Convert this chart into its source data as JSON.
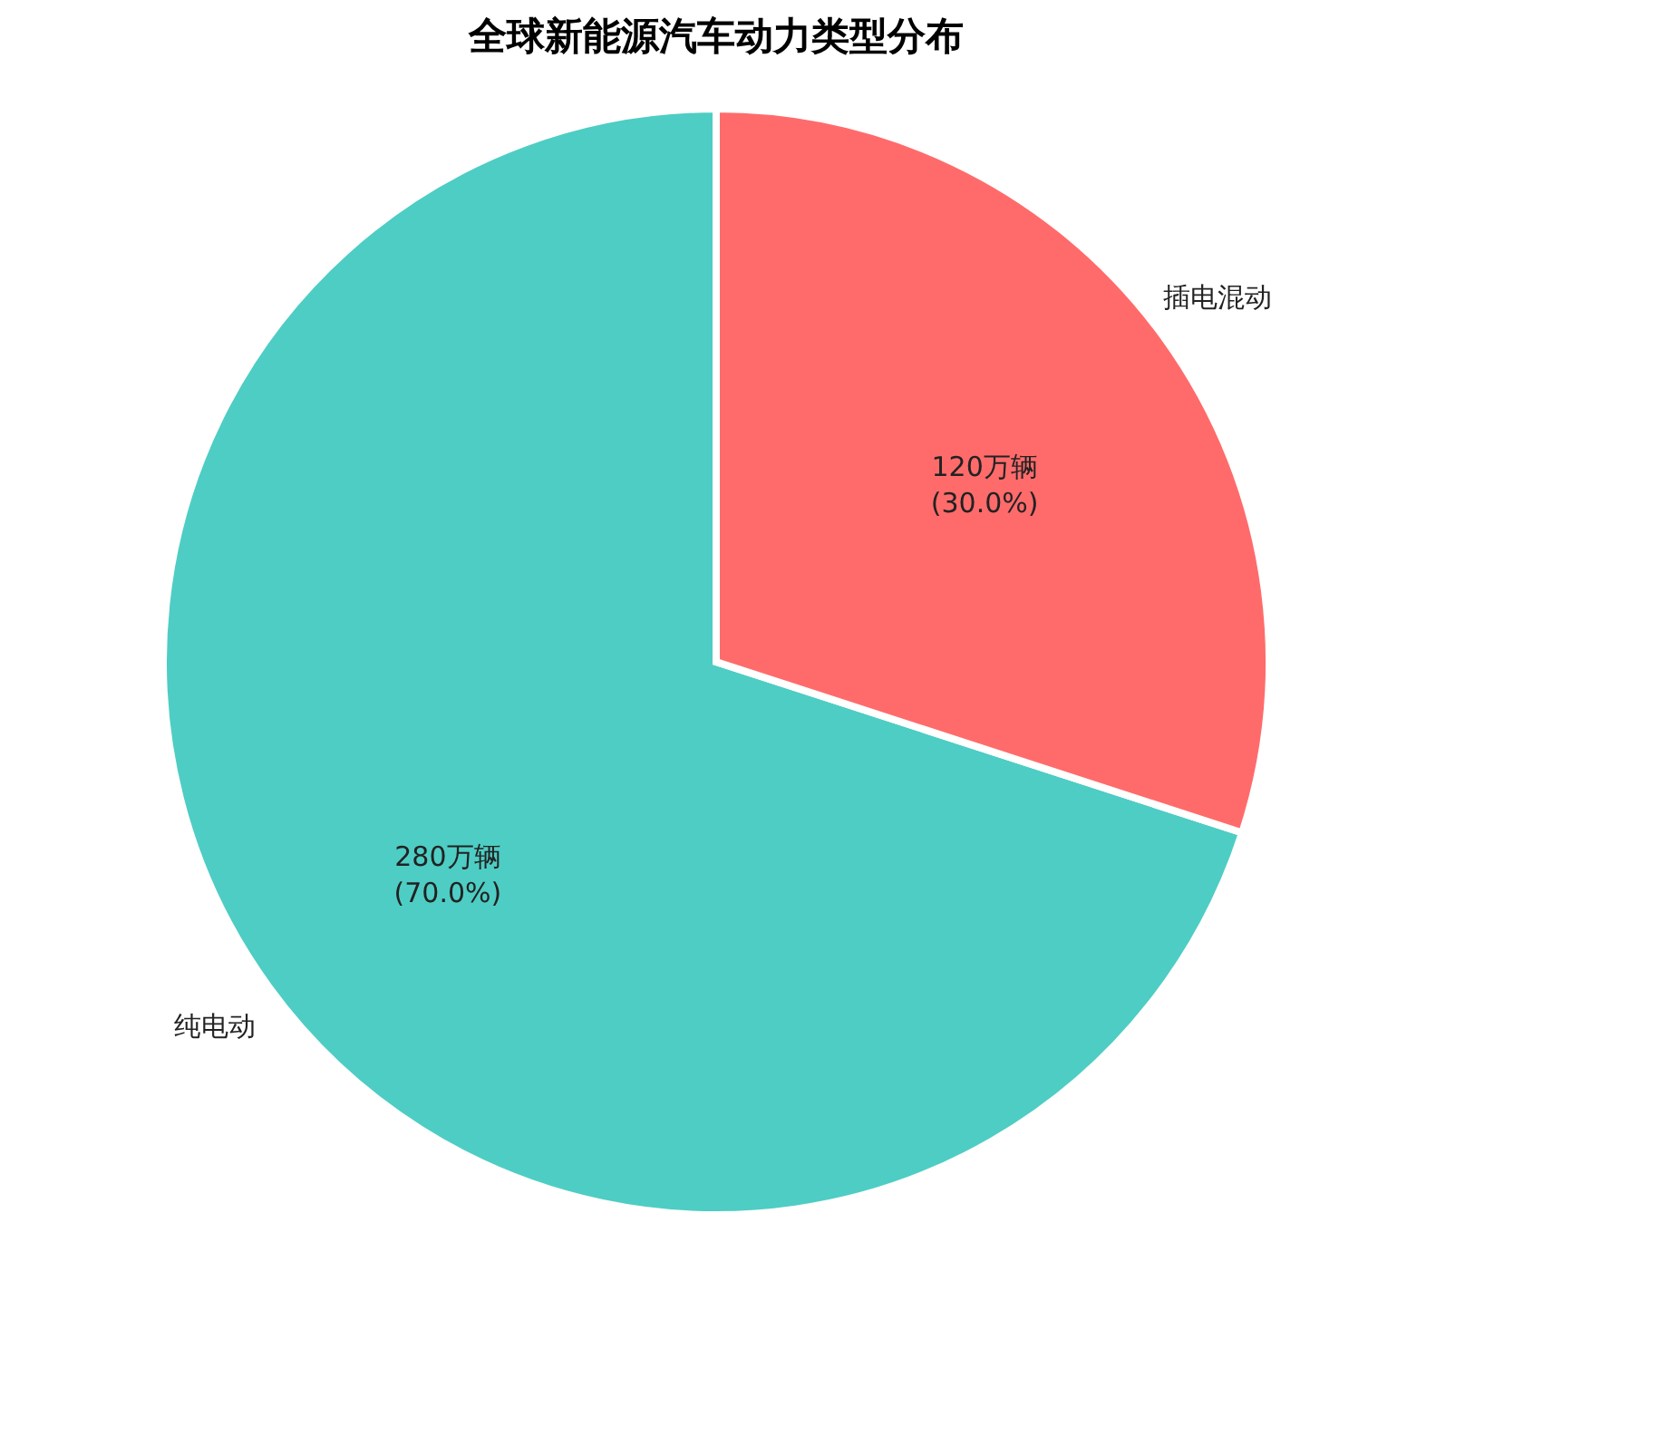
{
  "chart_data": {
    "type": "pie",
    "title": "全球新能源汽车动力类型分布",
    "categories": [
      "纯电动",
      "插电混动"
    ],
    "values": [
      280,
      120
    ],
    "colors": [
      "#4ecdc4",
      "#ff6b6b"
    ],
    "value_labels": [
      "280万辆\n(70.0%)",
      "120万辆\n(30.0%)"
    ],
    "legend": false
  }
}
